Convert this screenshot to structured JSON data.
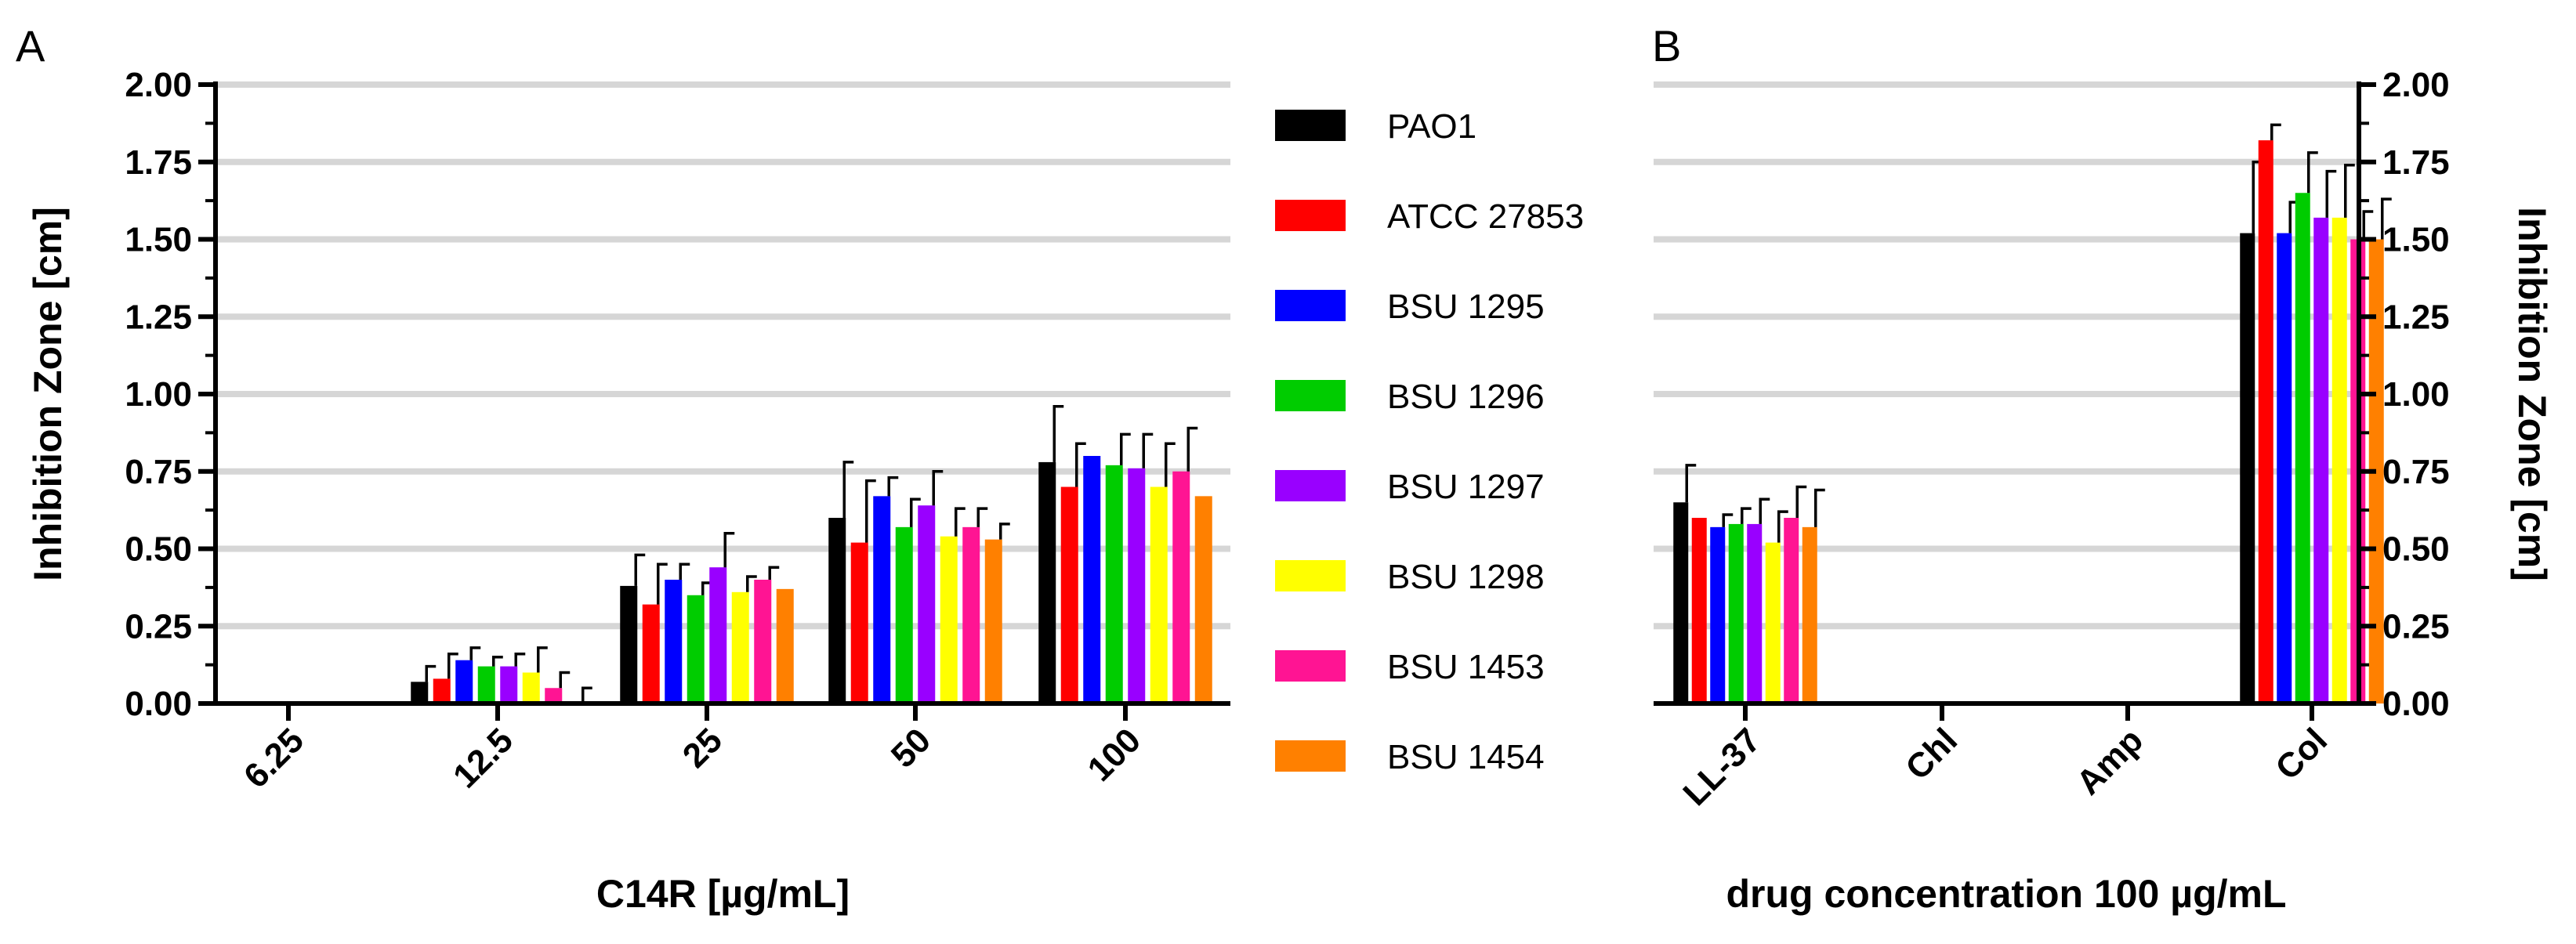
{
  "panels": {
    "A": {
      "letter": "A"
    },
    "B": {
      "letter": "B"
    }
  },
  "colors": {
    "PAO1": "#000000",
    "ATCC 27853": "#ff0000",
    "BSU 1295": "#0000ff",
    "BSU 1296": "#00cc00",
    "BSU 1297": "#9900ff",
    "BSU 1298": "#ffff00",
    "BSU 1453": "#ff1493",
    "BSU 1454": "#ff8000"
  },
  "legend": [
    "PAO1",
    "ATCC 27853",
    "BSU 1295",
    "BSU 1296",
    "BSU 1297",
    "BSU 1298",
    "BSU 1453",
    "BSU 1454"
  ],
  "chart_data": [
    {
      "panel": "A",
      "type": "bar",
      "title": "",
      "xlabel": "C14R [µg/mL]",
      "ylabel": "Inhibition Zone [cm]",
      "ylim": [
        0,
        2
      ],
      "yticks": [
        "0.00",
        "0.25",
        "0.50",
        "0.75",
        "1.00",
        "1.25",
        "1.50",
        "1.75",
        "2.00"
      ],
      "grid": true,
      "categories": [
        "6.25",
        "12.5",
        "25",
        "50",
        "100"
      ],
      "series": [
        {
          "name": "PAO1",
          "values": [
            0,
            0.07,
            0.38,
            0.6,
            0.78
          ],
          "errors": [
            0,
            0.05,
            0.1,
            0.18,
            0.18
          ]
        },
        {
          "name": "ATCC 27853",
          "values": [
            0,
            0.08,
            0.32,
            0.52,
            0.7
          ],
          "errors": [
            0,
            0.08,
            0.13,
            0.2,
            0.14
          ]
        },
        {
          "name": "BSU 1295",
          "values": [
            0,
            0.14,
            0.4,
            0.67,
            0.8
          ],
          "errors": [
            0,
            0.04,
            0.05,
            0.06,
            0.0
          ]
        },
        {
          "name": "BSU 1296",
          "values": [
            0,
            0.12,
            0.35,
            0.57,
            0.77
          ],
          "errors": [
            0,
            0.03,
            0.04,
            0.09,
            0.1
          ]
        },
        {
          "name": "BSU 1297",
          "values": [
            0,
            0.12,
            0.44,
            0.64,
            0.76
          ],
          "errors": [
            0,
            0.04,
            0.11,
            0.11,
            0.11
          ]
        },
        {
          "name": "BSU 1298",
          "values": [
            0,
            0.1,
            0.36,
            0.54,
            0.7
          ],
          "errors": [
            0,
            0.08,
            0.05,
            0.09,
            0.14
          ]
        },
        {
          "name": "BSU 1453",
          "values": [
            0,
            0.05,
            0.4,
            0.57,
            0.75
          ],
          "errors": [
            0,
            0.05,
            0.04,
            0.06,
            0.14
          ]
        },
        {
          "name": "BSU 1454",
          "values": [
            0,
            0.0,
            0.37,
            0.53,
            0.67
          ],
          "errors": [
            0,
            0.05,
            0.0,
            0.05,
            0.0
          ]
        }
      ]
    },
    {
      "panel": "B",
      "type": "bar",
      "title": "",
      "xlabel": "drug concentration 100 µg/mL",
      "ylabel": "Inhibition Zone [cm]",
      "ylim": [
        0,
        2
      ],
      "yticks": [
        "0.00",
        "0.25",
        "0.50",
        "0.75",
        "1.00",
        "1.25",
        "1.50",
        "1.75",
        "2.00"
      ],
      "grid": true,
      "categories": [
        "LL-37",
        "Chl",
        "Amp",
        "Col"
      ],
      "series": [
        {
          "name": "PAO1",
          "values": [
            0.65,
            0,
            0,
            1.52
          ],
          "errors": [
            0.12,
            0,
            0,
            0.23
          ]
        },
        {
          "name": "ATCC 27853",
          "values": [
            0.6,
            0,
            0,
            1.82
          ],
          "errors": [
            0.0,
            0,
            0,
            0.05
          ]
        },
        {
          "name": "BSU 1295",
          "values": [
            0.57,
            0,
            0,
            1.52
          ],
          "errors": [
            0.04,
            0,
            0,
            0.1
          ]
        },
        {
          "name": "BSU 1296",
          "values": [
            0.58,
            0,
            0,
            1.65
          ],
          "errors": [
            0.05,
            0,
            0,
            0.13
          ]
        },
        {
          "name": "BSU 1297",
          "values": [
            0.58,
            0,
            0,
            1.57
          ],
          "errors": [
            0.08,
            0,
            0,
            0.15
          ]
        },
        {
          "name": "BSU 1298",
          "values": [
            0.52,
            0,
            0,
            1.57
          ],
          "errors": [
            0.1,
            0,
            0,
            0.17
          ]
        },
        {
          "name": "BSU 1453",
          "values": [
            0.6,
            0,
            0,
            1.5
          ],
          "errors": [
            0.1,
            0,
            0,
            0.09
          ]
        },
        {
          "name": "BSU 1454",
          "values": [
            0.57,
            0,
            0,
            1.5
          ],
          "errors": [
            0.12,
            0,
            0,
            0.13
          ]
        }
      ]
    }
  ]
}
